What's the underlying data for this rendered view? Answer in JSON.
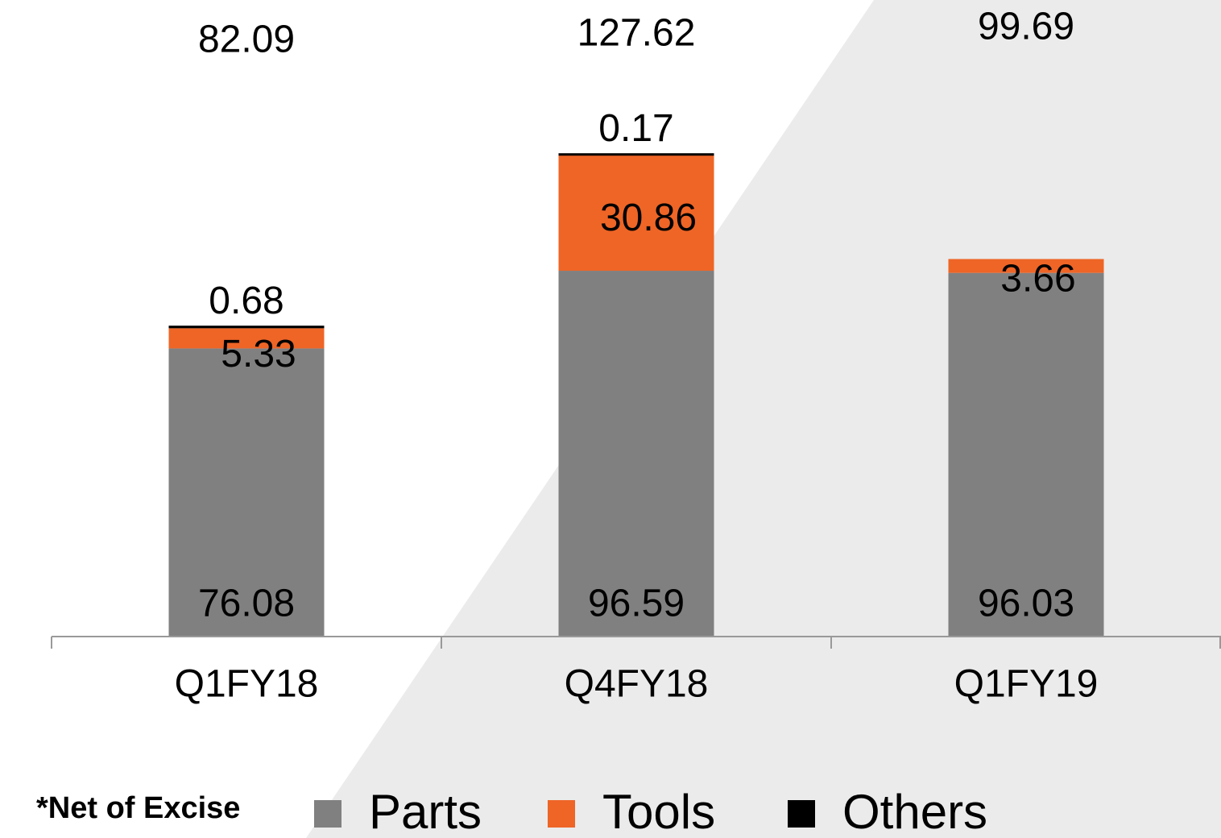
{
  "chart_data": {
    "type": "stacked_bar",
    "categories": [
      "Q1FY18",
      "Q4FY18",
      "Q1FY19"
    ],
    "series": [
      {
        "name": "Parts",
        "color": "#808080",
        "values": [
          76.08,
          96.59,
          96.03
        ]
      },
      {
        "name": "Tools",
        "color": "#ee6526",
        "values": [
          5.33,
          30.86,
          3.66
        ]
      },
      {
        "name": "Others",
        "color": "#000000",
        "values": [
          0.68,
          0.17,
          null
        ]
      }
    ],
    "totals": [
      82.09,
      127.62,
      99.69
    ],
    "note": "*Net of Excise",
    "ylim": [
      0,
      130
    ],
    "legend": "bottom"
  }
}
